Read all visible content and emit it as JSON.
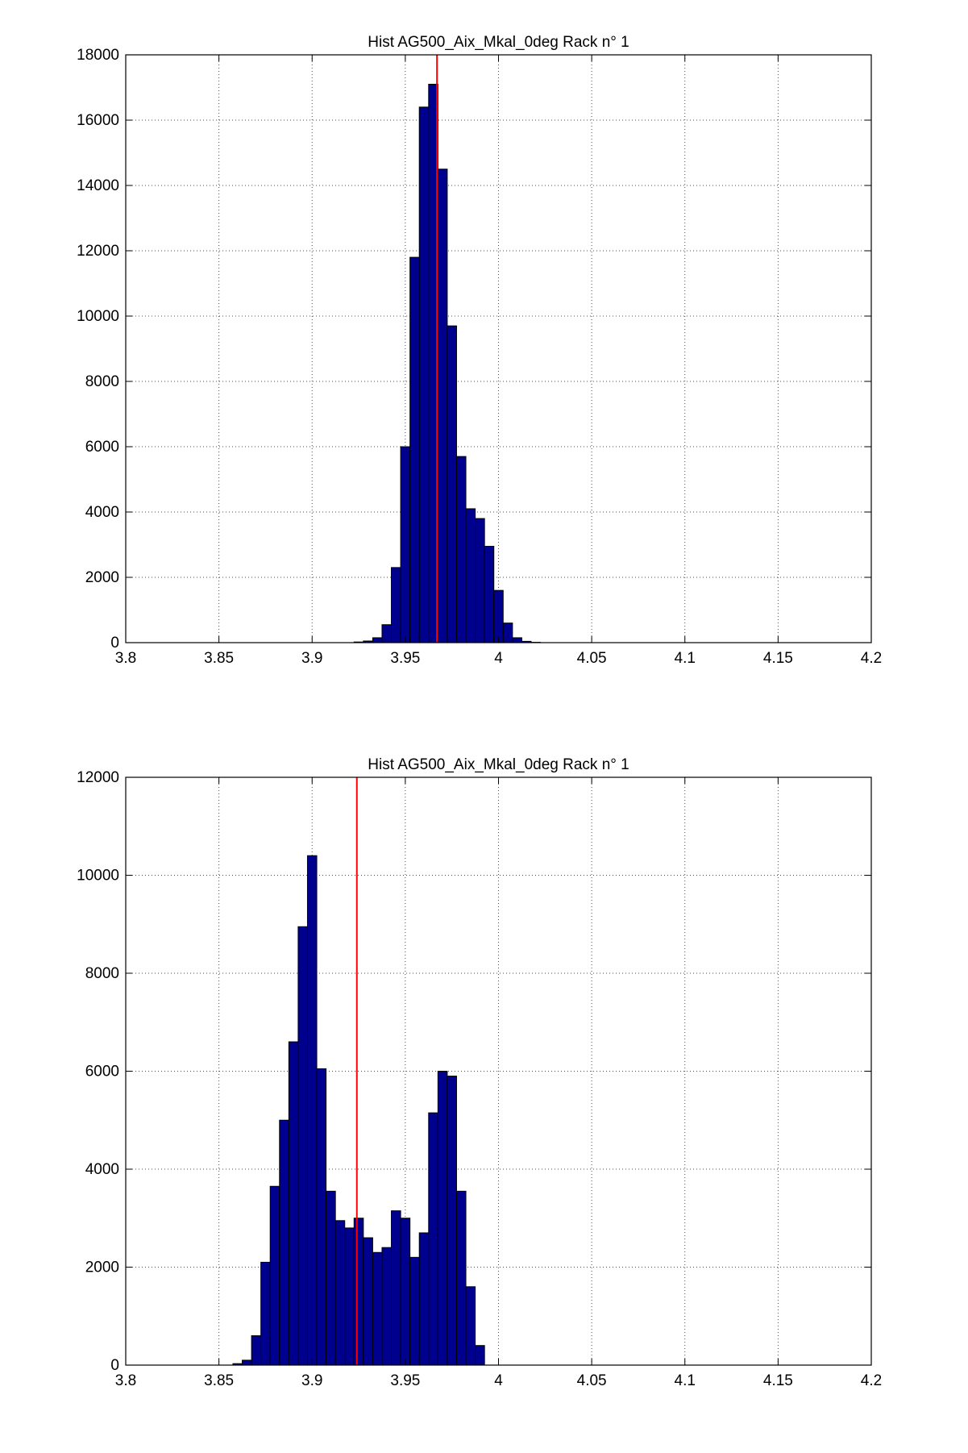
{
  "chart_data": [
    {
      "type": "bar",
      "title": "Hist AG500_Aix_Mkal_0deg Rack n° 1",
      "xlabel": "",
      "ylabel": "",
      "xlim": [
        3.8,
        4.2
      ],
      "ylim": [
        0,
        18000
      ],
      "xticks": [
        "3.8",
        "3.85",
        "3.9",
        "3.95",
        "4",
        "4.05",
        "4.1",
        "4.15",
        "4.2"
      ],
      "yticks": [
        "0",
        "2000",
        "4000",
        "6000",
        "8000",
        "10000",
        "12000",
        "14000",
        "16000",
        "18000"
      ],
      "grid": true,
      "bin_width": 0.005,
      "x": [
        3.925,
        3.93,
        3.935,
        3.94,
        3.945,
        3.95,
        3.955,
        3.96,
        3.965,
        3.97,
        3.975,
        3.98,
        3.985,
        3.99,
        3.995,
        4.0,
        4.005,
        4.01,
        4.015,
        4.02
      ],
      "values": [
        20,
        50,
        150,
        550,
        2300,
        6000,
        11800,
        16400,
        17100,
        14500,
        9700,
        5700,
        4100,
        3800,
        2950,
        1600,
        600,
        150,
        40,
        10
      ],
      "bar_color": "#00008f",
      "mean_line": {
        "x": 3.967,
        "color": "#ff0000"
      }
    },
    {
      "type": "bar",
      "title": "Hist AG500_Aix_Mkal_0deg Rack n° 1",
      "xlabel": "",
      "ylabel": "",
      "xlim": [
        3.8,
        4.2
      ],
      "ylim": [
        0,
        12000
      ],
      "xticks": [
        "3.8",
        "3.85",
        "3.9",
        "3.95",
        "4",
        "4.05",
        "4.1",
        "4.15",
        "4.2"
      ],
      "yticks": [
        "0",
        "2000",
        "4000",
        "6000",
        "8000",
        "10000",
        "12000"
      ],
      "grid": true,
      "bin_width": 0.005,
      "x": [
        3.86,
        3.865,
        3.87,
        3.875,
        3.88,
        3.885,
        3.89,
        3.895,
        3.9,
        3.905,
        3.91,
        3.915,
        3.92,
        3.925,
        3.93,
        3.935,
        3.94,
        3.945,
        3.95,
        3.955,
        3.96,
        3.965,
        3.97,
        3.975,
        3.98,
        3.985,
        3.99
      ],
      "values": [
        30,
        100,
        600,
        2100,
        3650,
        5000,
        6600,
        8950,
        10400,
        6050,
        3550,
        2950,
        2800,
        3000,
        2600,
        2300,
        2400,
        3150,
        3000,
        2200,
        2700,
        5150,
        6000,
        5900,
        3550,
        1600,
        400
      ],
      "bar_color": "#00008f",
      "mean_line": {
        "x": 3.924,
        "color": "#ff0000"
      }
    }
  ]
}
